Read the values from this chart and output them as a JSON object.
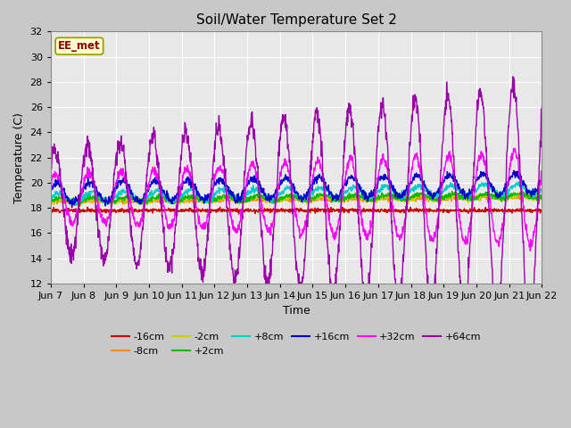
{
  "title": "Soil/Water Temperature Set 2",
  "xlabel": "Time",
  "ylabel": "Temperature (C)",
  "ylim": [
    12,
    32
  ],
  "yticks": [
    12,
    14,
    16,
    18,
    20,
    22,
    24,
    26,
    28,
    30,
    32
  ],
  "bg_color": "#e8e8e8",
  "label_box_text": "EE_met",
  "label_box_facecolor": "#ffffcc",
  "label_box_edgecolor": "#999900",
  "label_box_textcolor": "#880000",
  "series_colors": {
    "-16cm": "#cc0000",
    "-8cm": "#ff8800",
    "-2cm": "#cccc00",
    "+2cm": "#00bb00",
    "+8cm": "#00cccc",
    "+16cm": "#0000cc",
    "+32cm": "#ff00ff",
    "+64cm": "#9900aa"
  },
  "x_tick_labels": [
    "Jun 7",
    "Jun 8",
    "Jun 9",
    "Jun 10",
    "Jun 11",
    "Jun 12",
    "Jun 13",
    "Jun 14",
    "Jun 15",
    "Jun 16",
    "Jun 17",
    "Jun 18",
    "Jun 19",
    "Jun 20",
    "Jun 21",
    "Jun 22"
  ],
  "x_tick_positions": [
    0,
    24,
    48,
    72,
    96,
    120,
    144,
    168,
    192,
    216,
    240,
    264,
    288,
    312,
    336,
    360
  ],
  "figsize": [
    6.4,
    4.8
  ],
  "dpi": 100
}
